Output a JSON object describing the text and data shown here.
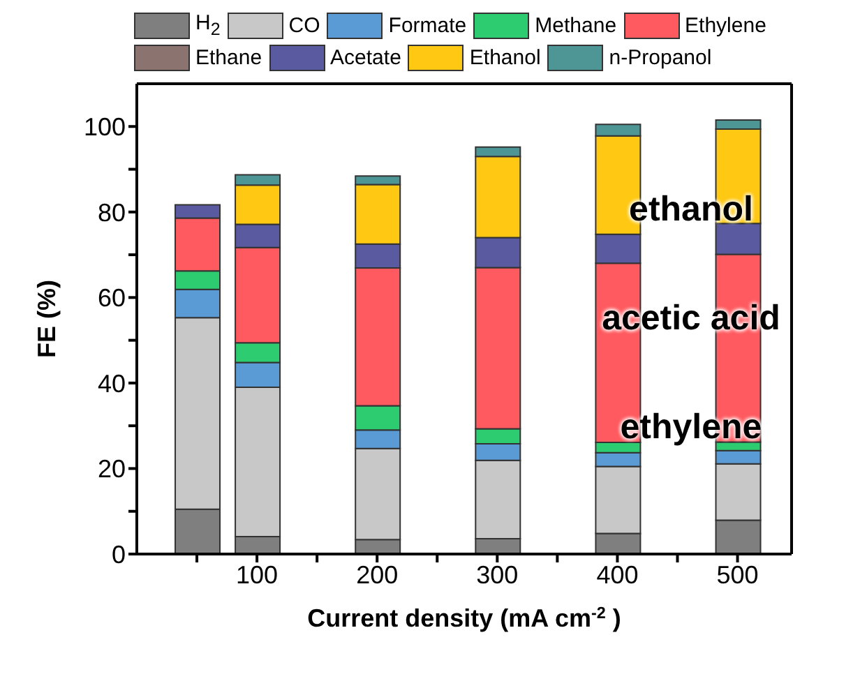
{
  "chart_data": {
    "type": "bar",
    "stacked": true,
    "xlabel": "Current density (mA cm$^{-2}$)",
    "ylabel": "FE (%)",
    "x": [
      50,
      100,
      200,
      300,
      400,
      500
    ],
    "xlim": [
      0,
      545
    ],
    "xticks": [
      {
        "value": 50,
        "label": null
      },
      100,
      {
        "value": 150,
        "label": null
      },
      200,
      {
        "value": 250,
        "label": null
      },
      300,
      {
        "value": 350,
        "label": null
      },
      400,
      {
        "value": 450,
        "label": null
      },
      500
    ],
    "ylim": [
      0,
      110
    ],
    "yticks": [
      0,
      {
        "value": 10,
        "label": null
      },
      20,
      {
        "value": 30,
        "label": null
      },
      40,
      {
        "value": 50,
        "label": null
      },
      60,
      {
        "value": 70,
        "label": null
      },
      80,
      {
        "value": 90,
        "label": null
      },
      100
    ],
    "series": [
      {
        "name": "H$_{2}$",
        "color": "#7f7f7f",
        "values": [
          10.5,
          4.1,
          3.4,
          3.6,
          4.8,
          7.9
        ]
      },
      {
        "name": "CO",
        "color": "#c8c8c8",
        "values": [
          44.8,
          34.9,
          21.3,
          18.3,
          15.7,
          13.2
        ]
      },
      {
        "name": "Formate",
        "color": "#5b9bd5",
        "values": [
          6.6,
          5.8,
          4.3,
          3.9,
          3.2,
          3.1
        ]
      },
      {
        "name": "Methane",
        "color": "#2ecc71",
        "values": [
          4.3,
          4.6,
          5.7,
          3.5,
          2.4,
          2.0
        ]
      },
      {
        "name": "Ethylene",
        "color": "#ff5a5f",
        "values": [
          12.4,
          22.3,
          32.2,
          37.7,
          41.9,
          43.9
        ]
      },
      {
        "name": "Ethane",
        "color": "#8b7470",
        "values": [
          0,
          0,
          0,
          0,
          0,
          0
        ]
      },
      {
        "name": "Acetate",
        "color": "#5a5aa0",
        "values": [
          3.1,
          5.4,
          5.6,
          7.0,
          6.8,
          7.2
        ]
      },
      {
        "name": "Ethanol",
        "color": "#ffc812",
        "values": [
          0,
          9.2,
          13.9,
          19.0,
          23.0,
          22.1
        ]
      },
      {
        "name": "n-Propanol",
        "color": "#4e9696",
        "values": [
          0,
          2.4,
          2.0,
          2.2,
          2.7,
          2.1
        ]
      }
    ],
    "annotations": [
      "ethanol",
      "acetic acid",
      "ethylene"
    ],
    "legend": "top"
  }
}
